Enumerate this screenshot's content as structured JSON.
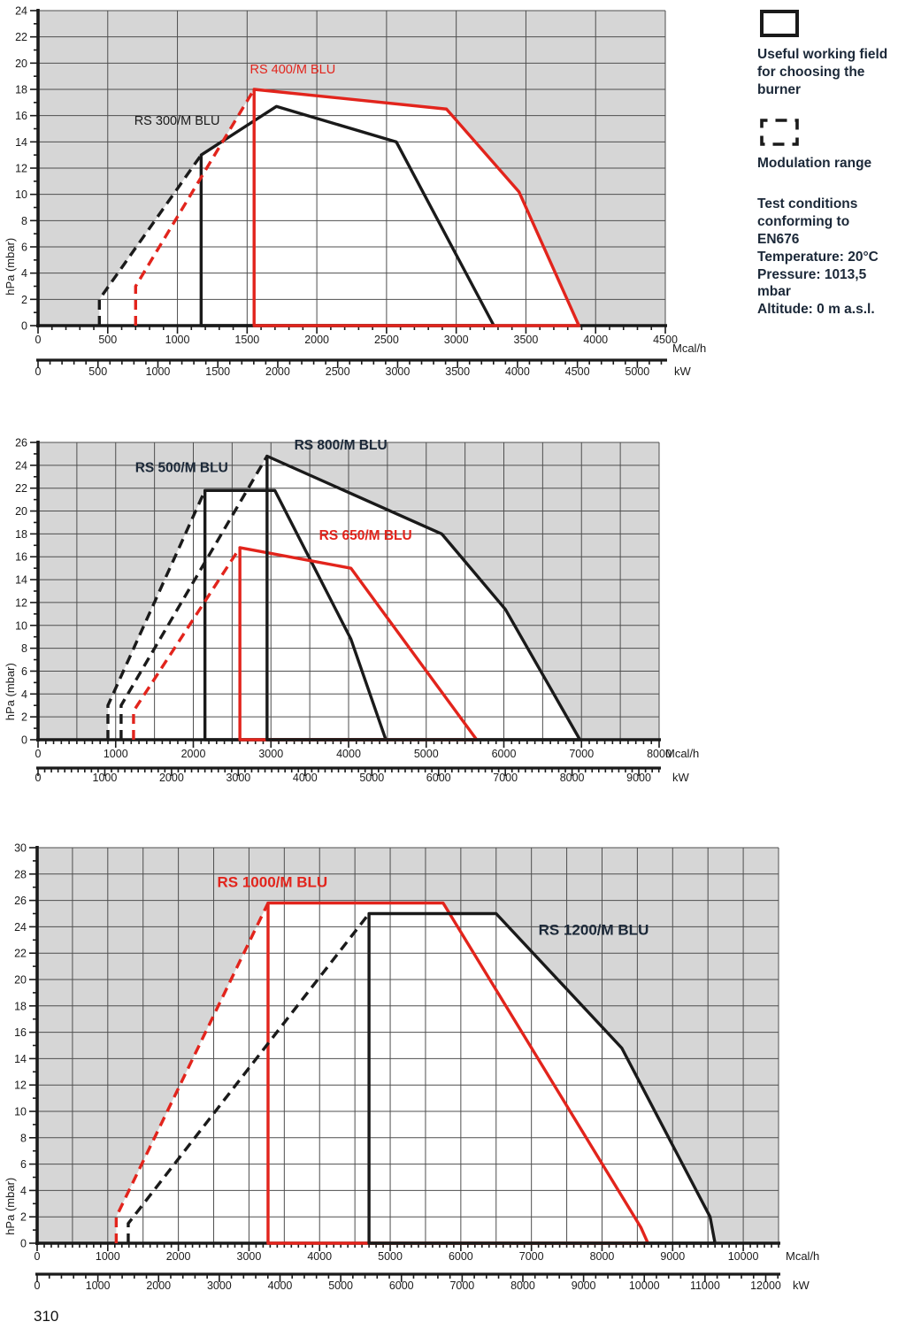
{
  "page": {
    "footer_page_number": "310"
  },
  "legend": {
    "useful_field_label": "Useful working field\nfor choosing the\nburner",
    "modulation_label": "Modulation range",
    "test_conditions": "Test conditions\nconforming to\nEN676\nTemperature: 20°C\nPressure: 1013,5\nmbar\nAltitude: 0 m a.s.l."
  },
  "colors": {
    "red": "#e2241c",
    "black": "#1a1a1a",
    "plot_grey": "#d6d6d6",
    "grid": "#4f4f4f",
    "dark_label": "#1b2838",
    "white": "#ffffff"
  },
  "chart_data": [
    {
      "type": "area",
      "title": "",
      "ylabel": "hPa (mbar)",
      "grid": true,
      "x_axis": {
        "unit": "Mcal/h",
        "min": 0,
        "max": 4500,
        "label_max": 4500,
        "label_step": 500,
        "grid_step": 500,
        "minor_step": 100
      },
      "y_axis": {
        "min": 0,
        "max": 24,
        "label_step": 2,
        "minor_step": 1
      },
      "kw_axis": {
        "unit": "kW",
        "label_max": 5000,
        "label_step": 500,
        "minor_step": 100,
        "factor": 1.163
      },
      "series": [
        {
          "name": "RS 300/M BLU",
          "color": "black",
          "field": [
            [
              1170,
              0
            ],
            [
              1170,
              13
            ],
            [
              1710,
              16.7
            ],
            [
              2570,
              14
            ],
            [
              3270,
              0
            ]
          ],
          "modulation": [
            [
              440,
              0
            ],
            [
              440,
              2
            ],
            [
              1170,
              13
            ]
          ],
          "label_pos": [
            690,
            15.3
          ]
        },
        {
          "name": "RS 400/M BLU",
          "color": "red",
          "field": [
            [
              1550,
              0
            ],
            [
              1550,
              18
            ],
            [
              2930,
              16.5
            ],
            [
              3450,
              10.2
            ],
            [
              3880,
              0
            ]
          ],
          "modulation": [
            [
              700,
              0
            ],
            [
              700,
              3
            ],
            [
              1550,
              18
            ]
          ],
          "label_pos": [
            1520,
            19.2
          ]
        }
      ]
    },
    {
      "type": "area",
      "title": "",
      "ylabel": "hPa (mbar)",
      "grid": true,
      "x_axis": {
        "unit": "Mcal/h",
        "min": 0,
        "max": 8000,
        "label_max": 8000,
        "label_step": 1000,
        "grid_step": 500,
        "minor_step": 100
      },
      "y_axis": {
        "min": 0,
        "max": 26,
        "label_step": 2,
        "minor_step": 1
      },
      "kw_axis": {
        "unit": "kW",
        "label_max": 9000,
        "label_step": 1000,
        "minor_step": 100,
        "factor": 1.163
      },
      "series": [
        {
          "name": "RS 500/M BLU",
          "color": "black",
          "field": [
            [
              2150,
              0
            ],
            [
              2150,
              21.8
            ],
            [
              3050,
              21.8
            ],
            [
              4030,
              8.8
            ],
            [
              4480,
              0
            ]
          ],
          "modulation": [
            [
              900,
              0
            ],
            [
              900,
              3
            ],
            [
              2150,
              21.8
            ]
          ],
          "label_pos": [
            1250,
            23.4
          ]
        },
        {
          "name": "RS 650/M BLU",
          "color": "red",
          "field": [
            [
              2600,
              0
            ],
            [
              2600,
              16.8
            ],
            [
              4030,
              15
            ],
            [
              5650,
              0
            ]
          ],
          "modulation": [
            [
              1230,
              0
            ],
            [
              1230,
              2.5
            ],
            [
              2600,
              16.8
            ]
          ],
          "label_pos": [
            3620,
            17.5
          ]
        },
        {
          "name": "RS 800/M BLU",
          "color": "black",
          "field": [
            [
              2950,
              0
            ],
            [
              2950,
              24.8
            ],
            [
              5200,
              18
            ],
            [
              6020,
              11.4
            ],
            [
              6980,
              0
            ]
          ],
          "modulation": [
            [
              1070,
              0
            ],
            [
              1070,
              3
            ],
            [
              2950,
              24.8
            ]
          ],
          "label_pos": [
            3300,
            25.4
          ]
        }
      ]
    },
    {
      "type": "area",
      "title": "",
      "ylabel": "hPa (mbar)",
      "grid": true,
      "x_axis": {
        "unit": "Mcal/h",
        "min": 0,
        "max": 10500,
        "label_max": 10000,
        "label_step": 1000,
        "grid_step": 500,
        "minor_step": 100
      },
      "y_axis": {
        "min": 0,
        "max": 30,
        "label_step": 2,
        "minor_step": 1
      },
      "kw_axis": {
        "unit": "kW",
        "label_max": 12000,
        "label_step": 1000,
        "minor_step": 200,
        "factor": 1.163
      },
      "series": [
        {
          "name": "RS 1000/M BLU",
          "color": "red",
          "field": [
            [
              3270,
              0
            ],
            [
              3270,
              25.8
            ],
            [
              5750,
              25.8
            ],
            [
              8550,
              1.2
            ],
            [
              8650,
              0
            ]
          ],
          "modulation": [
            [
              1120,
              0
            ],
            [
              1120,
              2
            ],
            [
              3270,
              25.8
            ]
          ],
          "label_pos": [
            2550,
            27.0
          ]
        },
        {
          "name": "RS 1200/M BLU",
          "color": "black",
          "field": [
            [
              4700,
              0
            ],
            [
              4700,
              25
            ],
            [
              6500,
              25
            ],
            [
              8280,
              14.8
            ],
            [
              9530,
              2
            ],
            [
              9600,
              0
            ]
          ],
          "modulation": [
            [
              1290,
              0
            ],
            [
              1290,
              1.5
            ],
            [
              4700,
              25
            ]
          ],
          "label_pos": [
            7100,
            23.4
          ]
        }
      ]
    }
  ]
}
